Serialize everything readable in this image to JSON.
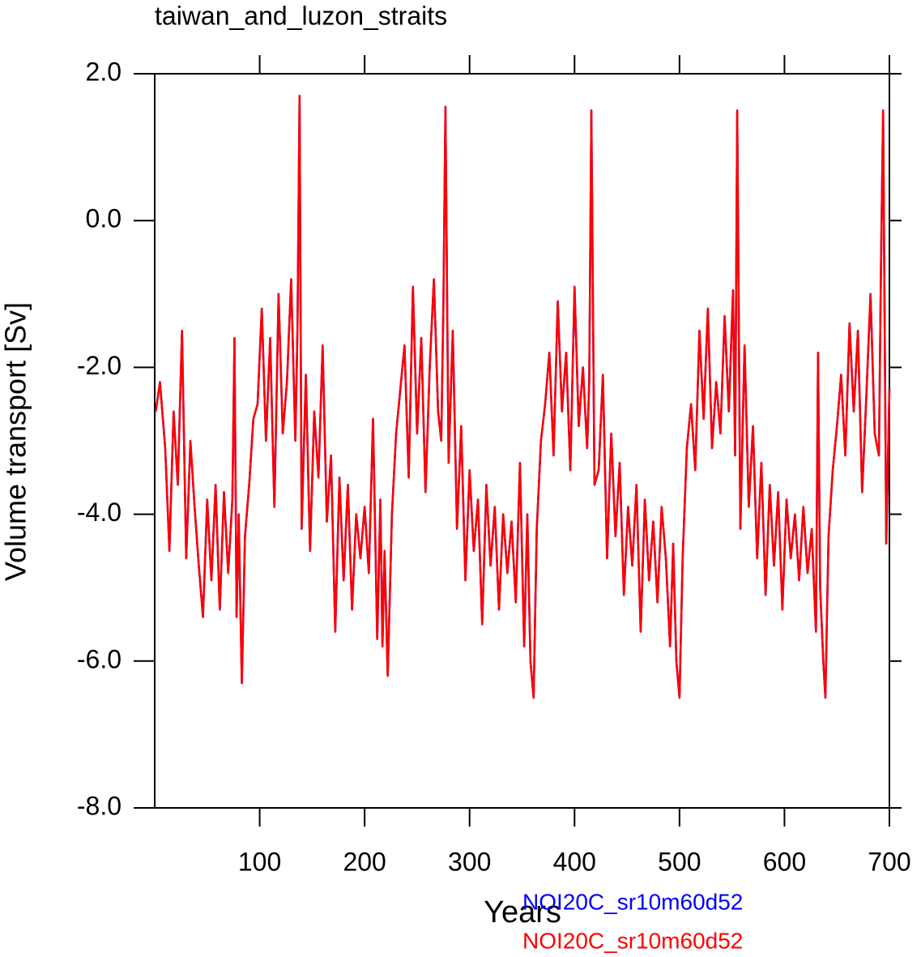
{
  "chart_data": {
    "type": "line",
    "title": "taiwan_and_luzon_straits",
    "xlabel": "Years",
    "ylabel": "Volume transport [Sv]",
    "xlim": [
      0,
      700
    ],
    "ylim": [
      -8,
      2
    ],
    "xticks": [
      100,
      200,
      300,
      400,
      500,
      600,
      700
    ],
    "yticks": [
      {
        "value": 2,
        "label": "2.0"
      },
      {
        "value": 0,
        "label": "0.0"
      },
      {
        "value": -2,
        "label": "-2.0"
      },
      {
        "value": -4,
        "label": "-4.0"
      },
      {
        "value": -6,
        "label": "-6.0"
      },
      {
        "value": -8,
        "label": "-8.0"
      }
    ],
    "legend": "bottom-right",
    "x": [
      1,
      5,
      10,
      14,
      18,
      22,
      26,
      30,
      34,
      38,
      42,
      46,
      50,
      54,
      58,
      62,
      66,
      70,
      74,
      76,
      78,
      80,
      83,
      86,
      90,
      94,
      98,
      102,
      106,
      110,
      114,
      118,
      122,
      126,
      130,
      134,
      136,
      138,
      140,
      144,
      148,
      152,
      156,
      160,
      164,
      168,
      172,
      176,
      180,
      184,
      188,
      192,
      196,
      200,
      204,
      208,
      212,
      215,
      217,
      219,
      222,
      226,
      230,
      234,
      238,
      242,
      246,
      250,
      254,
      258,
      262,
      266,
      270,
      273,
      275,
      277,
      280,
      284,
      288,
      292,
      296,
      300,
      304,
      308,
      312,
      316,
      320,
      324,
      328,
      332,
      336,
      340,
      344,
      348,
      352,
      355,
      358,
      361,
      364,
      368,
      372,
      376,
      380,
      384,
      388,
      392,
      396,
      400,
      404,
      408,
      412,
      414,
      416,
      419,
      423,
      427,
      431,
      435,
      439,
      443,
      447,
      451,
      455,
      459,
      463,
      467,
      471,
      475,
      479,
      483,
      487,
      491,
      494,
      497,
      500,
      503,
      507,
      511,
      515,
      519,
      523,
      527,
      531,
      535,
      539,
      543,
      547,
      551,
      553,
      555,
      558,
      562,
      566,
      570,
      574,
      578,
      582,
      586,
      590,
      594,
      598,
      602,
      606,
      610,
      614,
      618,
      622,
      626,
      630,
      632,
      634,
      637,
      639,
      642,
      646,
      650,
      654,
      658,
      662,
      666,
      670,
      674,
      678,
      682,
      686,
      690,
      692,
      694,
      697,
      700
    ],
    "series": [
      {
        "name": "NOI20C_sr10m60d52",
        "color": "#0000ff",
        "values": [
          -2.6,
          -2.2,
          -3.1,
          -4.5,
          -2.6,
          -3.6,
          -1.5,
          -4.6,
          -3.0,
          -3.9,
          -4.7,
          -5.4,
          -3.8,
          -4.9,
          -3.6,
          -5.3,
          -3.7,
          -4.8,
          -3.8,
          -1.6,
          -5.4,
          -4.0,
          -6.3,
          -4.3,
          -3.6,
          -2.7,
          -2.5,
          -1.2,
          -3.0,
          -1.6,
          -3.9,
          -1.0,
          -2.9,
          -2.2,
          -0.8,
          -3.0,
          -1.5,
          1.7,
          -4.2,
          -2.1,
          -4.5,
          -2.6,
          -3.5,
          -1.7,
          -4.1,
          -3.2,
          -5.6,
          -3.5,
          -4.9,
          -3.6,
          -5.3,
          -4.0,
          -4.6,
          -3.9,
          -4.8,
          -2.7,
          -5.7,
          -3.8,
          -5.8,
          -4.5,
          -6.2,
          -4.0,
          -2.9,
          -2.3,
          -1.7,
          -3.5,
          -0.9,
          -2.9,
          -1.6,
          -3.7,
          -2.0,
          -0.8,
          -2.6,
          -3.0,
          -1.2,
          1.55,
          -3.3,
          -1.5,
          -4.2,
          -2.8,
          -4.9,
          -3.4,
          -4.5,
          -3.8,
          -5.5,
          -3.6,
          -4.7,
          -3.9,
          -5.3,
          -4.0,
          -4.8,
          -4.1,
          -5.2,
          -3.3,
          -5.8,
          -4.0,
          -6.0,
          -6.5,
          -4.2,
          -3.0,
          -2.5,
          -1.8,
          -3.2,
          -1.1,
          -2.6,
          -1.8,
          -3.4,
          -0.9,
          -2.8,
          -2.0,
          -3.1,
          -2.2,
          1.5,
          -3.6,
          -3.4,
          -2.1,
          -4.6,
          -2.9,
          -4.3,
          -3.3,
          -5.1,
          -3.9,
          -4.7,
          -3.6,
          -5.6,
          -3.8,
          -4.9,
          -4.1,
          -5.2,
          -3.9,
          -4.6,
          -5.8,
          -4.4,
          -6.0,
          -6.5,
          -4.6,
          -3.1,
          -2.5,
          -3.4,
          -1.5,
          -2.7,
          -1.2,
          -3.1,
          -2.2,
          -2.9,
          -1.3,
          -2.6,
          -0.95,
          -3.2,
          1.5,
          -4.2,
          -1.7,
          -3.9,
          -2.8,
          -4.6,
          -3.3,
          -5.1,
          -3.6,
          -4.7,
          -3.7,
          -5.3,
          -3.8,
          -4.6,
          -4.0,
          -4.9,
          -3.9,
          -4.8,
          -4.2,
          -5.6,
          -1.8,
          -5.0,
          -6.0,
          -6.5,
          -4.3,
          -3.4,
          -2.8,
          -2.1,
          -3.2,
          -1.4,
          -2.6,
          -1.5,
          -3.7,
          -2.4,
          -1.0,
          -2.9,
          -3.2,
          -0.6,
          1.5,
          -4.4,
          -2.3
        ]
      },
      {
        "name": "NOI20C_sr10m60d52",
        "color": "#ff0000",
        "values": [
          -2.6,
          -2.2,
          -3.1,
          -4.5,
          -2.6,
          -3.6,
          -1.5,
          -4.6,
          -3.0,
          -3.9,
          -4.7,
          -5.4,
          -3.8,
          -4.9,
          -3.6,
          -5.3,
          -3.7,
          -4.8,
          -3.8,
          -1.6,
          -5.4,
          -4.0,
          -6.3,
          -4.3,
          -3.6,
          -2.7,
          -2.5,
          -1.2,
          -3.0,
          -1.6,
          -3.9,
          -1.0,
          -2.9,
          -2.2,
          -0.8,
          -3.0,
          -1.5,
          1.7,
          -4.2,
          -2.1,
          -4.5,
          -2.6,
          -3.5,
          -1.7,
          -4.1,
          -3.2,
          -5.6,
          -3.5,
          -4.9,
          -3.6,
          -5.3,
          -4.0,
          -4.6,
          -3.9,
          -4.8,
          -2.7,
          -5.7,
          -3.8,
          -5.8,
          -4.5,
          -6.2,
          -4.0,
          -2.9,
          -2.3,
          -1.7,
          -3.5,
          -0.9,
          -2.9,
          -1.6,
          -3.7,
          -2.0,
          -0.8,
          -2.6,
          -3.0,
          -1.2,
          1.55,
          -3.3,
          -1.5,
          -4.2,
          -2.8,
          -4.9,
          -3.4,
          -4.5,
          -3.8,
          -5.5,
          -3.6,
          -4.7,
          -3.9,
          -5.3,
          -4.0,
          -4.8,
          -4.1,
          -5.2,
          -3.3,
          -5.8,
          -4.0,
          -6.0,
          -6.5,
          -4.2,
          -3.0,
          -2.5,
          -1.8,
          -3.2,
          -1.1,
          -2.6,
          -1.8,
          -3.4,
          -0.9,
          -2.8,
          -2.0,
          -3.1,
          -2.2,
          1.5,
          -3.6,
          -3.4,
          -2.1,
          -4.6,
          -2.9,
          -4.3,
          -3.3,
          -5.1,
          -3.9,
          -4.7,
          -3.6,
          -5.6,
          -3.8,
          -4.9,
          -4.1,
          -5.2,
          -3.9,
          -4.6,
          -5.8,
          -4.4,
          -6.0,
          -6.5,
          -4.6,
          -3.1,
          -2.5,
          -3.4,
          -1.5,
          -2.7,
          -1.2,
          -3.1,
          -2.2,
          -2.9,
          -1.3,
          -2.6,
          -0.95,
          -3.2,
          1.5,
          -4.2,
          -1.7,
          -3.9,
          -2.8,
          -4.6,
          -3.3,
          -5.1,
          -3.6,
          -4.7,
          -3.7,
          -5.3,
          -3.8,
          -4.6,
          -4.0,
          -4.9,
          -3.9,
          -4.8,
          -4.2,
          -5.6,
          -1.8,
          -5.0,
          -6.0,
          -6.5,
          -4.3,
          -3.4,
          -2.8,
          -2.1,
          -3.2,
          -1.4,
          -2.6,
          -1.5,
          -3.7,
          -2.4,
          -1.0,
          -2.9,
          -3.2,
          -0.6,
          1.5,
          -4.4,
          -2.3
        ]
      }
    ]
  }
}
